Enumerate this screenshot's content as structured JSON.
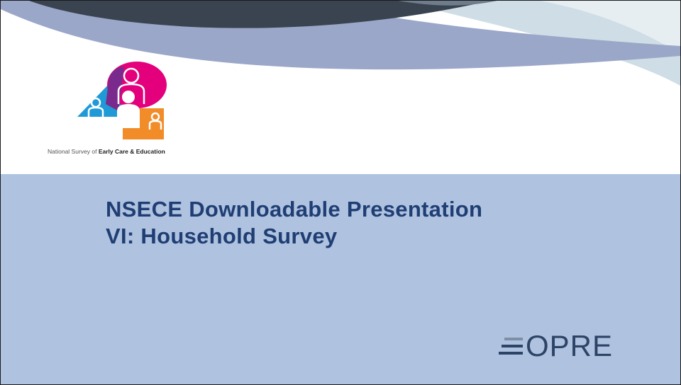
{
  "slide": {
    "tagline_prefix": "National Survey of ",
    "tagline_bold": "Early Care & Education",
    "title_line1": "NSECE Downloadable Presentation",
    "title_line2": "VI: Household Survey",
    "brand": "OPRE"
  },
  "colors": {
    "title": "#1f3e73",
    "panel": "#afc2e0",
    "swoosh_dark": "#3a4450",
    "swoosh_blue": "#9aa7c9",
    "logo_magenta": "#e4007c",
    "logo_blue": "#1f9ad6",
    "logo_orange": "#f28c28",
    "logo_purple": "#7a2a8c",
    "brand": "#2d4466"
  }
}
